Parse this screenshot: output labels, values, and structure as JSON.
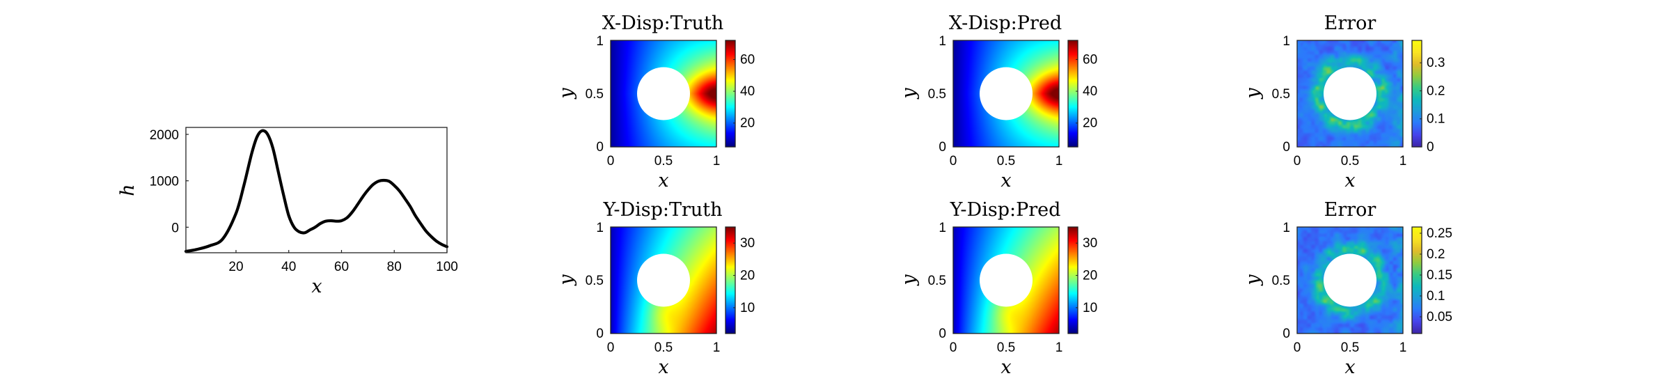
{
  "chart_data": [
    {
      "type": "line",
      "id": "profile",
      "title": "",
      "xlabel": "x",
      "ylabel": "h",
      "xlim": [
        1,
        100
      ],
      "ylim": [
        -550,
        2150
      ],
      "xticks": [
        20,
        40,
        60,
        80,
        100
      ],
      "yticks": [
        0,
        1000,
        2000
      ],
      "x": [
        1,
        5,
        10,
        15,
        20,
        23,
        26,
        28,
        30,
        32,
        34,
        36,
        38,
        40,
        42,
        44,
        46,
        48,
        50,
        52,
        54,
        56,
        58,
        60,
        62,
        64,
        66,
        68,
        70,
        72,
        74,
        76,
        78,
        80,
        82,
        84,
        86,
        88,
        90,
        92,
        94,
        96,
        98,
        100
      ],
      "y": [
        -520,
        -480,
        -400,
        -250,
        300,
        900,
        1600,
        1950,
        2080,
        2000,
        1700,
        1200,
        700,
        250,
        0,
        -100,
        -120,
        -60,
        0,
        80,
        130,
        140,
        130,
        140,
        200,
        320,
        480,
        650,
        800,
        920,
        990,
        1010,
        990,
        900,
        780,
        620,
        450,
        250,
        80,
        -80,
        -200,
        -300,
        -370,
        -420
      ],
      "color": "#000000"
    },
    {
      "type": "heatmap",
      "id": "x-truth",
      "title": "X-Disp:Truth",
      "xlabel": "x",
      "ylabel": "y",
      "xticks": [
        "0",
        "0.5",
        "1"
      ],
      "yticks": [
        "0",
        "0.5",
        "1"
      ],
      "colormap": "jet",
      "field": "x-displacement",
      "clim": [
        5,
        72
      ],
      "colorbar_ticks": [
        "20",
        "40",
        "60"
      ],
      "colorbar_values": [
        20,
        40,
        60
      ],
      "hole": {
        "cx": 0.5,
        "cy": 0.5,
        "r": 0.25
      }
    },
    {
      "type": "heatmap",
      "id": "x-pred",
      "title": "X-Disp:Pred",
      "xlabel": "x",
      "ylabel": "y",
      "xticks": [
        "0",
        "0.5",
        "1"
      ],
      "yticks": [
        "0",
        "0.5",
        "1"
      ],
      "colormap": "jet",
      "field": "x-displacement",
      "clim": [
        5,
        72
      ],
      "colorbar_ticks": [
        "20",
        "40",
        "60"
      ],
      "colorbar_values": [
        20,
        40,
        60
      ],
      "hole": {
        "cx": 0.5,
        "cy": 0.5,
        "r": 0.25
      }
    },
    {
      "type": "heatmap",
      "id": "x-error",
      "title": "Error",
      "xlabel": "x",
      "ylabel": "y",
      "xticks": [
        "0",
        "0.5",
        "1"
      ],
      "yticks": [
        "0",
        "0.5",
        "1"
      ],
      "colormap": "parula",
      "field": "error",
      "clim": [
        0,
        0.38
      ],
      "colorbar_ticks": [
        "0",
        "0.1",
        "0.2",
        "0.3"
      ],
      "colorbar_values": [
        0,
        0.1,
        0.2,
        0.3
      ],
      "hole": {
        "cx": 0.5,
        "cy": 0.5,
        "r": 0.25
      }
    },
    {
      "type": "heatmap",
      "id": "y-truth",
      "title": "Y-Disp:Truth",
      "xlabel": "x",
      "ylabel": "y",
      "xticks": [
        "0",
        "0.5",
        "1"
      ],
      "yticks": [
        "0",
        "0.5",
        "1"
      ],
      "colormap": "jet",
      "field": "y-displacement",
      "clim": [
        2,
        35
      ],
      "colorbar_ticks": [
        "10",
        "20",
        "30"
      ],
      "colorbar_values": [
        10,
        20,
        30
      ],
      "hole": {
        "cx": 0.5,
        "cy": 0.5,
        "r": 0.25
      }
    },
    {
      "type": "heatmap",
      "id": "y-pred",
      "title": "Y-Disp:Pred",
      "xlabel": "x",
      "ylabel": "y",
      "xticks": [
        "0",
        "0.5",
        "1"
      ],
      "yticks": [
        "0",
        "0.5",
        "1"
      ],
      "colormap": "jet",
      "field": "y-displacement",
      "clim": [
        2,
        35
      ],
      "colorbar_ticks": [
        "10",
        "20",
        "30"
      ],
      "colorbar_values": [
        10,
        20,
        30
      ],
      "hole": {
        "cx": 0.5,
        "cy": 0.5,
        "r": 0.25
      }
    },
    {
      "type": "heatmap",
      "id": "y-error",
      "title": "Error",
      "xlabel": "x",
      "ylabel": "y",
      "xticks": [
        "0",
        "0.5",
        "1"
      ],
      "yticks": [
        "0",
        "0.5",
        "1"
      ],
      "colormap": "parula",
      "field": "error",
      "clim": [
        0.01,
        0.265
      ],
      "colorbar_ticks": [
        "0.05",
        "0.1",
        "0.15",
        "0.2",
        "0.25"
      ],
      "colorbar_values": [
        0.05,
        0.1,
        0.15,
        0.2,
        0.25
      ],
      "hole": {
        "cx": 0.5,
        "cy": 0.5,
        "r": 0.25
      }
    }
  ]
}
